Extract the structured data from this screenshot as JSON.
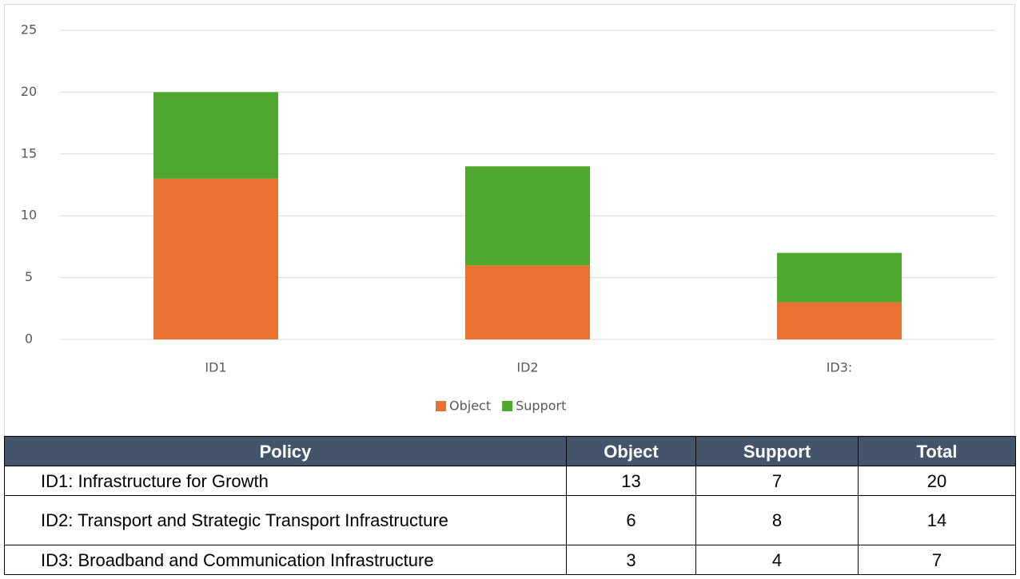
{
  "chart_data": {
    "type": "bar",
    "stacked": true,
    "categories": [
      "ID1",
      "ID2",
      "ID3:"
    ],
    "series": [
      {
        "name": "Object",
        "color": "#E97132",
        "values": [
          13,
          6,
          3
        ]
      },
      {
        "name": "Support",
        "color": "#4EA72E",
        "values": [
          7,
          8,
          4
        ]
      }
    ],
    "ylim": [
      0,
      25
    ],
    "yticks": [
      0,
      5,
      10,
      15,
      20,
      25
    ],
    "grid": true,
    "legend": "bottom"
  },
  "table": {
    "header": [
      "Policy",
      "Object",
      "Support",
      "Total"
    ],
    "rows": [
      [
        "ID1: Infrastructure for Growth",
        13,
        7,
        20
      ],
      [
        "ID2: Transport and Strategic Transport Infrastructure",
        6,
        8,
        14
      ],
      [
        "ID3: Broadband and Communication Infrastructure",
        3,
        4,
        7
      ]
    ]
  }
}
